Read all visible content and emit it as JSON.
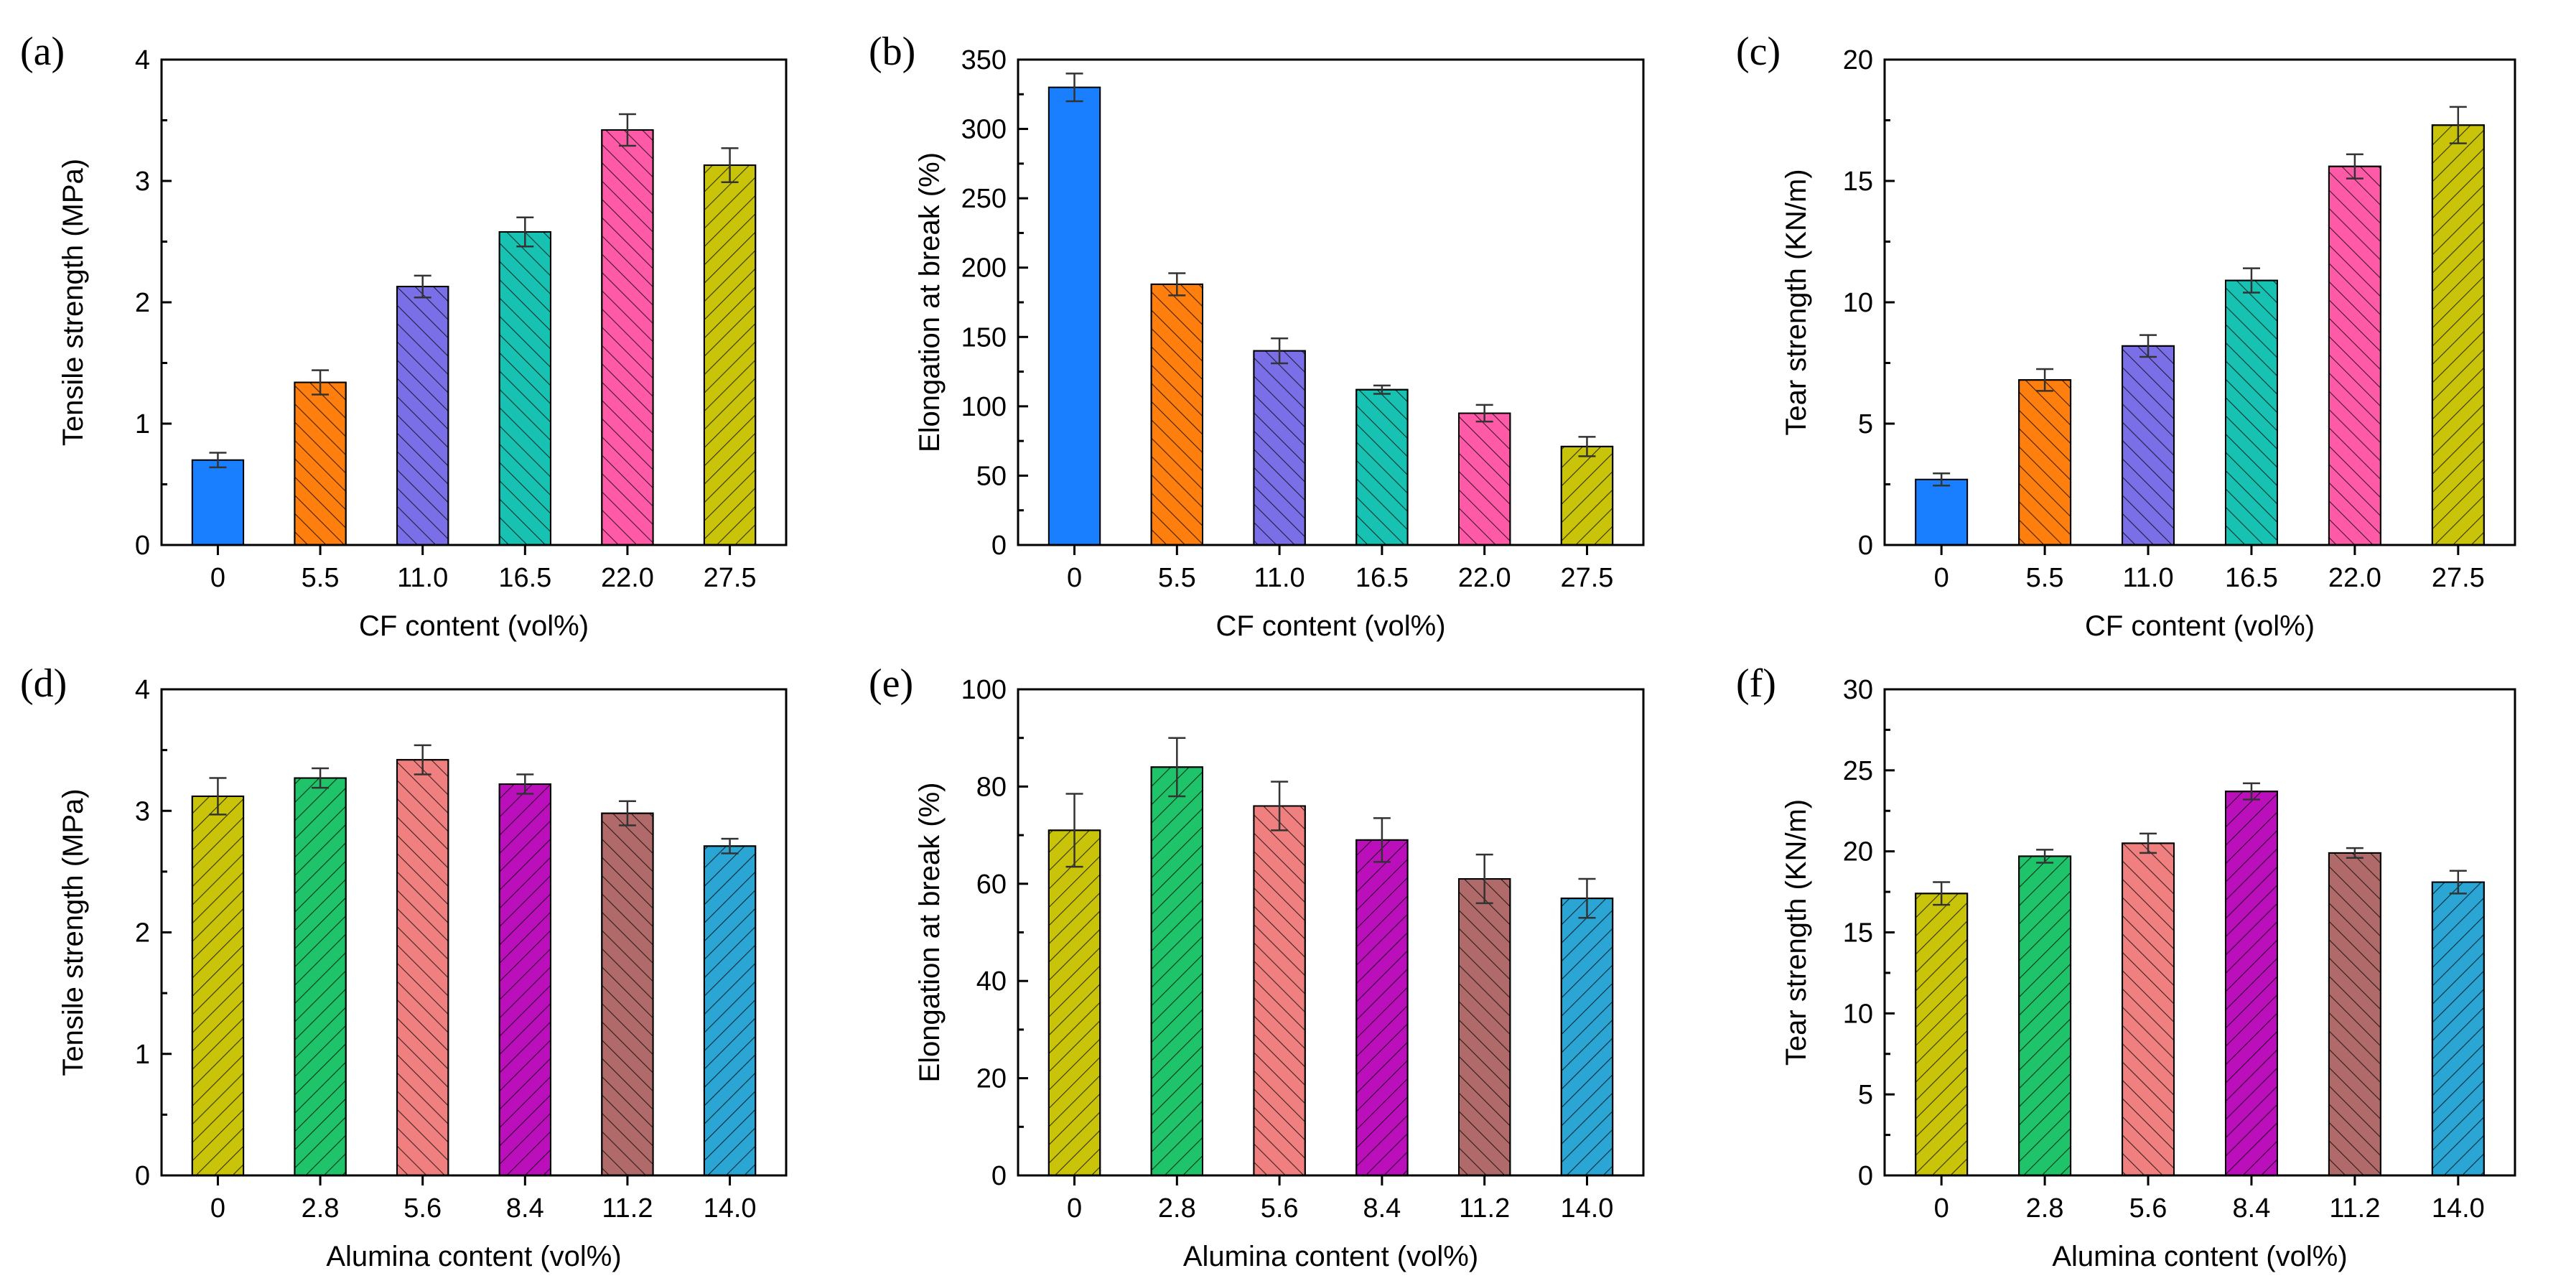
{
  "chart_data": [
    {
      "panel": "(a)",
      "type": "bar",
      "categories": [
        "0",
        "5.5",
        "11.0",
        "16.5",
        "22.0",
        "27.5"
      ],
      "values": [
        0.7,
        1.34,
        2.13,
        2.58,
        3.42,
        3.13
      ],
      "errors": [
        0.06,
        0.1,
        0.09,
        0.12,
        0.13,
        0.14
      ],
      "colors": [
        "#1a7fff",
        "#ff7f0e",
        "#7b6fe8",
        "#18c2b2",
        "#ff5aa8",
        "#c9c40a"
      ],
      "hatch": [
        "none",
        "back",
        "back",
        "back",
        "back",
        "fwd"
      ],
      "xlabel": "CF content (vol%)",
      "ylabel": "Tensile strength (MPa)",
      "ylim": [
        0,
        4
      ],
      "yticks": [
        0,
        1,
        2,
        3,
        4
      ]
    },
    {
      "panel": "(b)",
      "type": "bar",
      "categories": [
        "0",
        "5.5",
        "11.0",
        "16.5",
        "22.0",
        "27.5"
      ],
      "values": [
        330,
        188,
        140,
        112,
        95,
        71
      ],
      "errors": [
        10,
        8,
        9,
        3,
        6,
        7
      ],
      "colors": [
        "#1a7fff",
        "#ff7f0e",
        "#7b6fe8",
        "#18c2b2",
        "#ff5aa8",
        "#c9c40a"
      ],
      "hatch": [
        "none",
        "back",
        "back",
        "back",
        "back",
        "fwd"
      ],
      "xlabel": "CF content (vol%)",
      "ylabel": "Elongation at break (%)",
      "ylim": [
        0,
        350
      ],
      "yticks": [
        0,
        50,
        100,
        150,
        200,
        250,
        300,
        350
      ]
    },
    {
      "panel": "(c)",
      "type": "bar",
      "categories": [
        "0",
        "5.5",
        "11.0",
        "16.5",
        "22.0",
        "27.5"
      ],
      "values": [
        2.7,
        6.8,
        8.2,
        10.9,
        15.6,
        17.3
      ],
      "errors": [
        0.25,
        0.45,
        0.45,
        0.5,
        0.5,
        0.75
      ],
      "colors": [
        "#1a7fff",
        "#ff7f0e",
        "#7b6fe8",
        "#18c2b2",
        "#ff5aa8",
        "#c9c40a"
      ],
      "hatch": [
        "none",
        "back",
        "back",
        "back",
        "back",
        "fwd"
      ],
      "xlabel": "CF content (vol%)",
      "ylabel": "Tear strength (KN/m)",
      "ylim": [
        0,
        20
      ],
      "yticks": [
        0,
        5,
        10,
        15,
        20
      ]
    },
    {
      "panel": "(d)",
      "type": "bar",
      "categories": [
        "0",
        "2.8",
        "5.6",
        "8.4",
        "11.2",
        "14.0"
      ],
      "values": [
        3.12,
        3.27,
        3.42,
        3.22,
        2.98,
        2.71
      ],
      "errors": [
        0.15,
        0.08,
        0.12,
        0.08,
        0.1,
        0.06
      ],
      "colors": [
        "#c9c40a",
        "#1fc46a",
        "#f08080",
        "#bb0fbb",
        "#b06a6a",
        "#2aa5d4"
      ],
      "hatch": [
        "fwd",
        "fwd",
        "back",
        "fwd",
        "back",
        "fwd"
      ],
      "xlabel": "Alumina content (vol%)",
      "ylabel": "Tensile strength (MPa)",
      "ylim": [
        0,
        4
      ],
      "yticks": [
        0,
        1,
        2,
        3,
        4
      ]
    },
    {
      "panel": "(e)",
      "type": "bar",
      "categories": [
        "0",
        "2.8",
        "5.6",
        "8.4",
        "11.2",
        "14.0"
      ],
      "values": [
        71,
        84,
        76,
        69,
        61,
        57
      ],
      "errors": [
        7.5,
        6,
        5,
        4.5,
        5,
        4
      ],
      "colors": [
        "#c9c40a",
        "#1fc46a",
        "#f08080",
        "#bb0fbb",
        "#b06a6a",
        "#2aa5d4"
      ],
      "hatch": [
        "fwd",
        "fwd",
        "back",
        "fwd",
        "back",
        "fwd"
      ],
      "xlabel": "Alumina content (vol%)",
      "ylabel": "Elongation at break (%)",
      "ylim": [
        0,
        100
      ],
      "yticks": [
        0,
        20,
        40,
        60,
        80,
        100
      ]
    },
    {
      "panel": "(f)",
      "type": "bar",
      "categories": [
        "0",
        "2.8",
        "5.6",
        "8.4",
        "11.2",
        "14.0"
      ],
      "values": [
        17.4,
        19.7,
        20.5,
        23.7,
        19.9,
        18.1
      ],
      "errors": [
        0.7,
        0.4,
        0.6,
        0.5,
        0.3,
        0.7
      ],
      "colors": [
        "#c9c40a",
        "#1fc46a",
        "#f08080",
        "#bb0fbb",
        "#b06a6a",
        "#2aa5d4"
      ],
      "hatch": [
        "fwd",
        "fwd",
        "back",
        "fwd",
        "back",
        "fwd"
      ],
      "xlabel": "Alumina content (vol%)",
      "ylabel": "Tear strength (KN/m)",
      "ylim": [
        0,
        30
      ],
      "yticks": [
        0,
        5,
        10,
        15,
        20,
        25,
        30
      ]
    }
  ]
}
